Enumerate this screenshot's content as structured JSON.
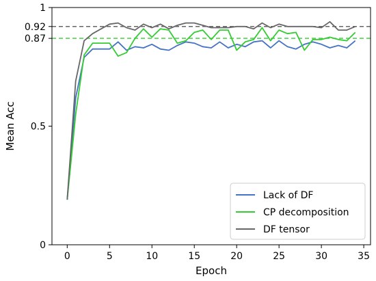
{
  "chart_data": {
    "type": "line",
    "xlabel": "Epoch",
    "ylabel": "Mean Acc",
    "xlim": [
      -1.8,
      35.8
    ],
    "ylim": [
      0,
      1
    ],
    "xticks": [
      0,
      5,
      10,
      15,
      20,
      25,
      30,
      35
    ],
    "yticks": [
      0,
      0.5,
      0.87,
      0.92,
      1
    ],
    "ytick_labels": [
      "0",
      "0.5",
      "0.87",
      "0.92",
      "1"
    ],
    "grid": false,
    "legend_position": "lower-right",
    "reference_lines": [
      {
        "y": 0.92,
        "color": "#666666",
        "style": "dashed"
      },
      {
        "y": 0.87,
        "color": "#33cc33",
        "style": "dashed"
      }
    ],
    "x": [
      0,
      1,
      2,
      3,
      4,
      5,
      6,
      7,
      8,
      9,
      10,
      11,
      12,
      13,
      14,
      15,
      16,
      17,
      18,
      19,
      20,
      21,
      22,
      23,
      24,
      25,
      26,
      27,
      28,
      29,
      30,
      31,
      32,
      33,
      34
    ],
    "series": [
      {
        "name": "Lack of DF",
        "color": "#4472c4",
        "values": [
          0.19,
          0.62,
          0.79,
          0.825,
          0.825,
          0.825,
          0.855,
          0.82,
          0.835,
          0.83,
          0.845,
          0.825,
          0.82,
          0.84,
          0.855,
          0.85,
          0.835,
          0.83,
          0.855,
          0.83,
          0.845,
          0.835,
          0.855,
          0.86,
          0.83,
          0.86,
          0.835,
          0.825,
          0.845,
          0.855,
          0.845,
          0.83,
          0.84,
          0.83,
          0.86
        ]
      },
      {
        "name": "CP decomposition",
        "color": "#33cc33",
        "values": [
          0.19,
          0.55,
          0.8,
          0.85,
          0.85,
          0.85,
          0.795,
          0.81,
          0.87,
          0.91,
          0.875,
          0.91,
          0.905,
          0.85,
          0.86,
          0.895,
          0.905,
          0.865,
          0.905,
          0.905,
          0.82,
          0.855,
          0.865,
          0.915,
          0.86,
          0.905,
          0.89,
          0.895,
          0.82,
          0.865,
          0.865,
          0.875,
          0.865,
          0.86,
          0.895
        ]
      },
      {
        "name": "DF tensor",
        "color": "#666666",
        "values": [
          0.19,
          0.69,
          0.86,
          0.89,
          0.91,
          0.93,
          0.935,
          0.915,
          0.905,
          0.93,
          0.915,
          0.93,
          0.91,
          0.925,
          0.935,
          0.935,
          0.925,
          0.915,
          0.915,
          0.915,
          0.92,
          0.92,
          0.91,
          0.935,
          0.915,
          0.93,
          0.92,
          0.92,
          0.92,
          0.92,
          0.915,
          0.94,
          0.905,
          0.905,
          0.92
        ]
      }
    ]
  }
}
